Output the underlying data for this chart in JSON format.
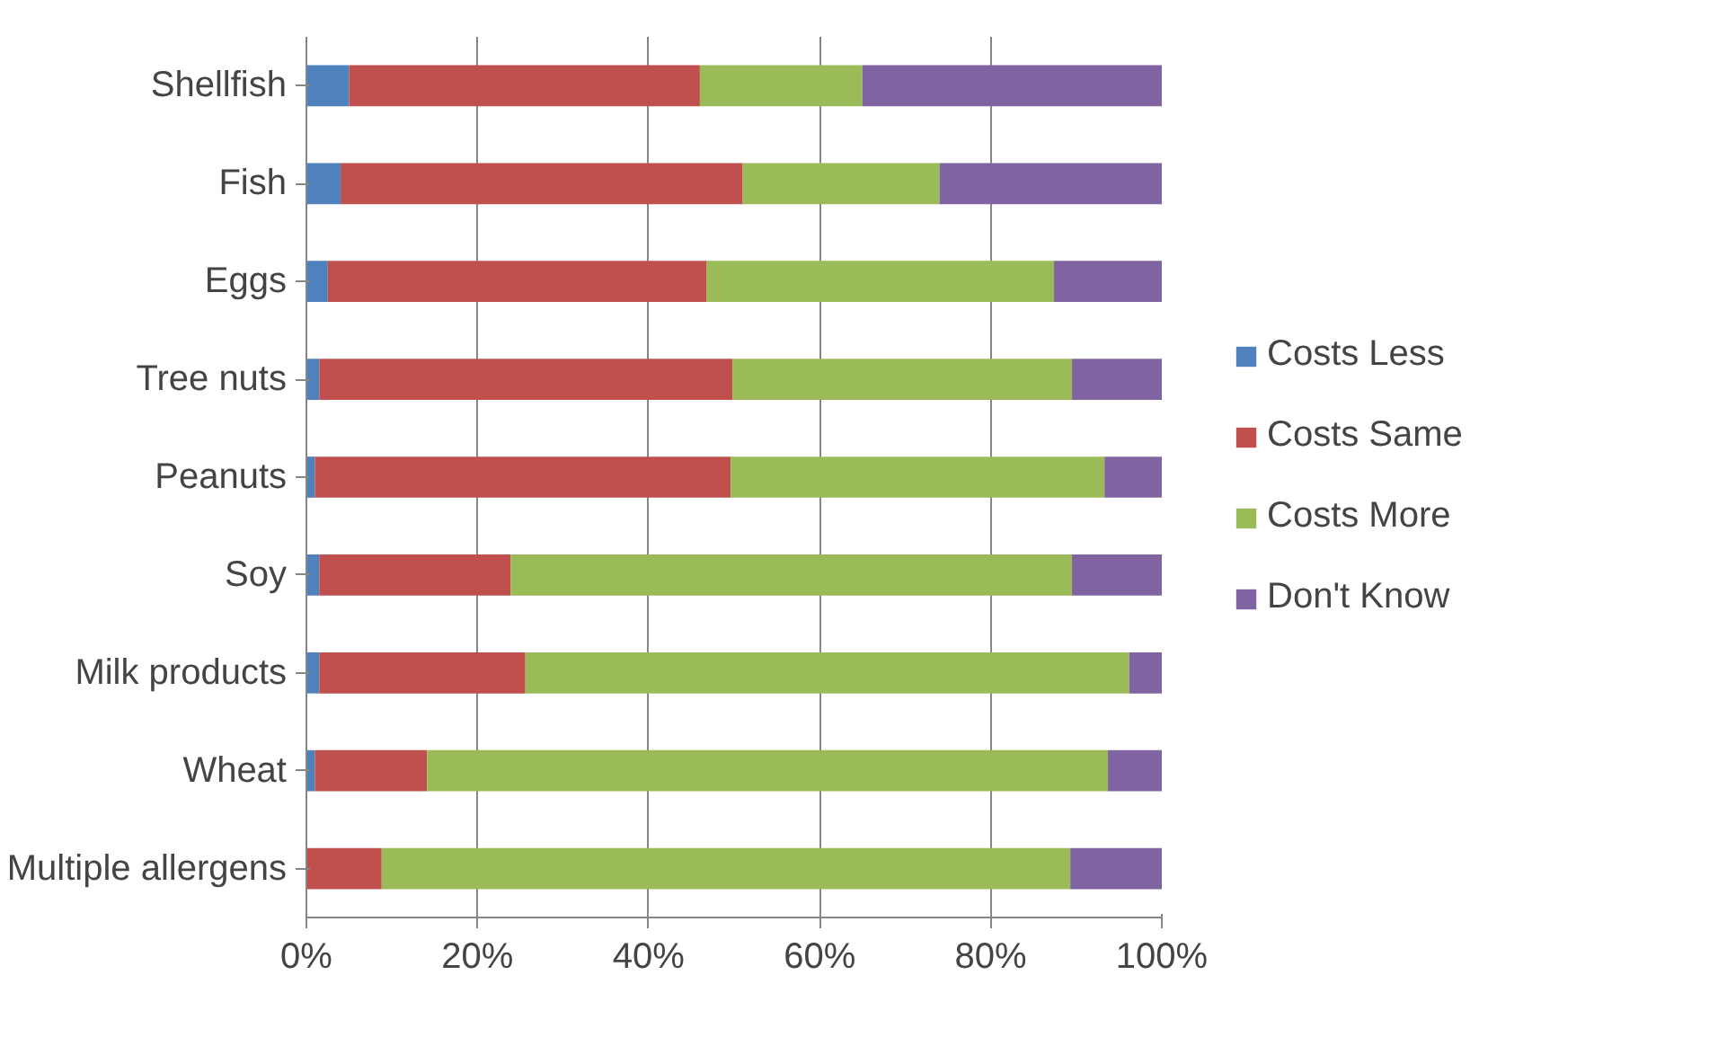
{
  "chart_data": {
    "type": "bar",
    "orientation": "horizontal",
    "stacked": true,
    "categories": [
      "Shellfish",
      "Fish",
      "Eggs",
      "Tree nuts",
      "Peanuts",
      "Soy",
      "Milk products",
      "Wheat",
      "Multiple allergens"
    ],
    "series": [
      {
        "name": "Costs Less",
        "color": "#4f81bd",
        "values": [
          5,
          4,
          2.5,
          1.5,
          1,
          1.5,
          1.5,
          1,
          0
        ]
      },
      {
        "name": "Costs Same",
        "color": "#c0504d",
        "values": [
          41,
          47,
          44.3,
          48.3,
          48.6,
          22.4,
          24.1,
          13.1,
          8.8
        ]
      },
      {
        "name": "Costs More",
        "color": "#9bbb59",
        "values": [
          19,
          23,
          40.6,
          39.7,
          43.7,
          65.6,
          70.6,
          79.6,
          80.5
        ]
      },
      {
        "name": "Don't Know",
        "color": "#8064a2",
        "values": [
          35,
          26,
          12.6,
          10.5,
          6.7,
          10.5,
          3.8,
          6.3,
          10.7
        ]
      }
    ],
    "xlim": [
      0,
      100
    ],
    "xticks": [
      {
        "value": 0,
        "label": "0%"
      },
      {
        "value": 20,
        "label": "20%"
      },
      {
        "value": 40,
        "label": "40%"
      },
      {
        "value": 60,
        "label": "60%"
      },
      {
        "value": 80,
        "label": "80%"
      },
      {
        "value": 100,
        "label": "100%"
      }
    ],
    "grid": "x",
    "legend": "right"
  }
}
